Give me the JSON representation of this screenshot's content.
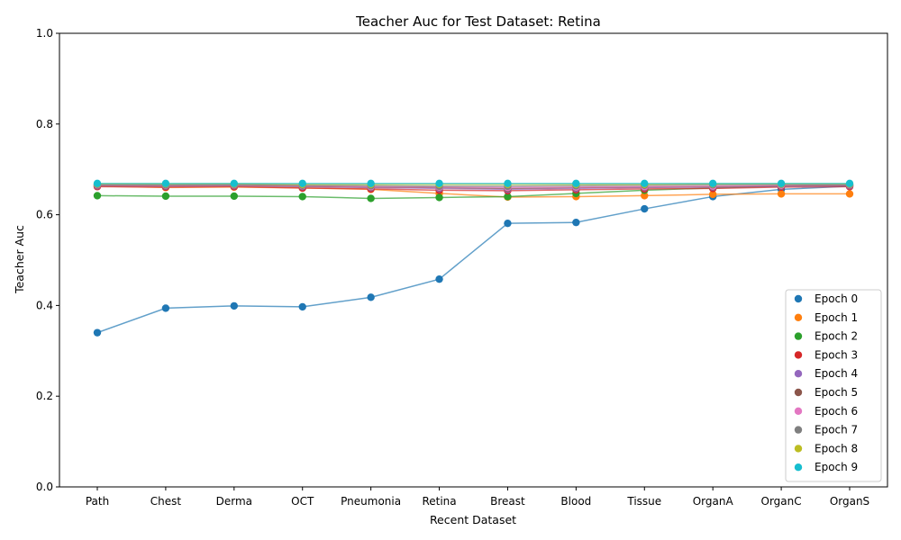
{
  "chart_data": {
    "type": "line",
    "title": "Teacher Auc for Test Dataset: Retina",
    "xlabel": "Recent Dataset",
    "ylabel": "Teacher Auc",
    "ylim": [
      0,
      1
    ],
    "yticks": [
      "0.0",
      "0.2",
      "0.4",
      "0.6",
      "0.8",
      "1.0"
    ],
    "categories": [
      "Path",
      "Chest",
      "Derma",
      "OCT",
      "Pneumonia",
      "Retina",
      "Breast",
      "Blood",
      "Tissue",
      "OrganA",
      "OrganC",
      "OrganS"
    ],
    "legend_position": "lower-right",
    "grid": false,
    "series": [
      {
        "name": "Epoch 0",
        "color": "#1f77b4",
        "values": [
          0.34,
          0.394,
          0.399,
          0.397,
          0.418,
          0.458,
          0.581,
          0.583,
          0.613,
          0.64,
          0.656,
          0.663
        ]
      },
      {
        "name": "Epoch 1",
        "color": "#ff7f0e",
        "values": [
          0.663,
          0.66,
          0.661,
          0.659,
          0.656,
          0.647,
          0.639,
          0.64,
          0.642,
          0.645,
          0.646,
          0.646
        ]
      },
      {
        "name": "Epoch 2",
        "color": "#2ca02c",
        "values": [
          0.642,
          0.641,
          0.641,
          0.64,
          0.636,
          0.638,
          0.64,
          0.647,
          0.654,
          0.659,
          0.663,
          0.665
        ]
      },
      {
        "name": "Epoch 3",
        "color": "#d62728",
        "values": [
          0.662,
          0.661,
          0.662,
          0.659,
          0.657,
          0.654,
          0.653,
          0.655,
          0.657,
          0.658,
          0.661,
          0.662
        ]
      },
      {
        "name": "Epoch 4",
        "color": "#9467bd",
        "values": [
          0.664,
          0.663,
          0.664,
          0.662,
          0.66,
          0.658,
          0.656,
          0.658,
          0.66,
          0.661,
          0.663,
          0.664
        ]
      },
      {
        "name": "Epoch 5",
        "color": "#8c564b",
        "values": [
          0.665,
          0.664,
          0.665,
          0.663,
          0.661,
          0.66,
          0.658,
          0.66,
          0.661,
          0.662,
          0.664,
          0.665
        ]
      },
      {
        "name": "Epoch 6",
        "color": "#e377c2",
        "values": [
          0.666,
          0.665,
          0.666,
          0.664,
          0.662,
          0.661,
          0.66,
          0.661,
          0.662,
          0.663,
          0.665,
          0.666
        ]
      },
      {
        "name": "Epoch 7",
        "color": "#7f7f7f",
        "values": [
          0.667,
          0.666,
          0.667,
          0.665,
          0.664,
          0.663,
          0.663,
          0.664,
          0.665,
          0.666,
          0.667,
          0.667
        ]
      },
      {
        "name": "Epoch 8",
        "color": "#bcbd22",
        "values": [
          0.668,
          0.668,
          0.668,
          0.667,
          0.667,
          0.667,
          0.667,
          0.667,
          0.667,
          0.668,
          0.668,
          0.668
        ]
      },
      {
        "name": "Epoch 9",
        "color": "#17becf",
        "values": [
          0.669,
          0.669,
          0.669,
          0.669,
          0.669,
          0.669,
          0.669,
          0.669,
          0.669,
          0.669,
          0.669,
          0.669
        ]
      }
    ]
  }
}
